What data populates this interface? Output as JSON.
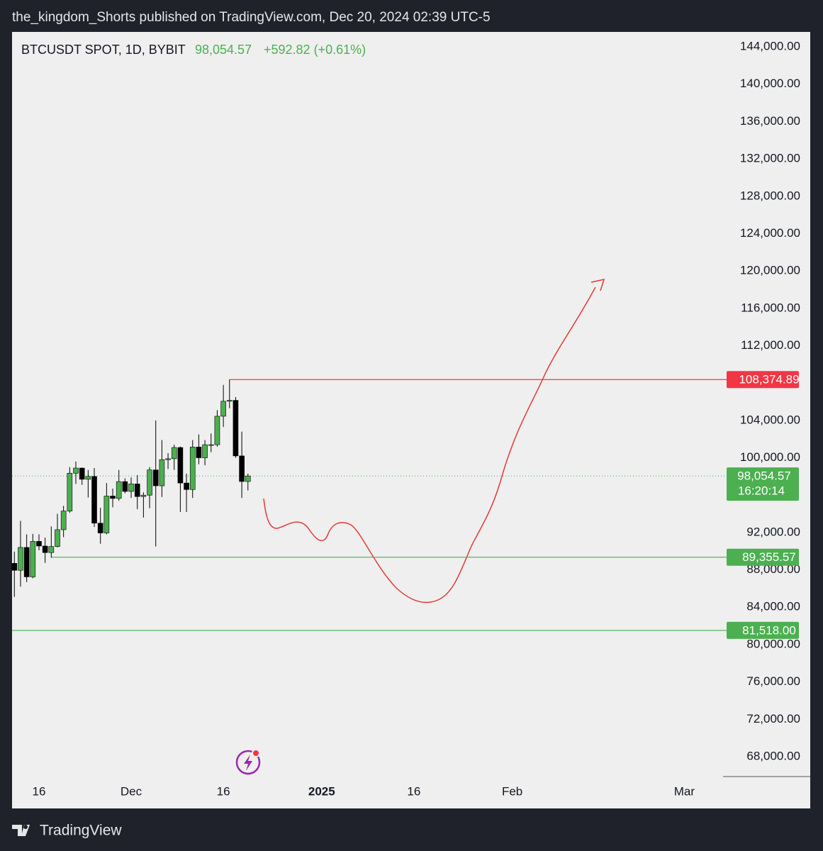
{
  "chart_data": {
    "type": "candlestick",
    "header": "the_kingdom_Shorts published on TradingView.com, Dec 20, 2024 02:39 UTC-5",
    "symbol": "BTCUSDT SPOT, 1D, BYBIT",
    "change": "+592.82 (+0.61%)",
    "brand": "TradingView",
    "x": [
      -4,
      -3,
      -2,
      -1,
      0,
      1,
      2,
      3,
      4,
      5,
      6,
      7,
      8,
      9,
      10,
      11,
      12,
      13,
      14,
      15,
      16,
      17,
      18,
      19,
      20,
      21,
      22,
      23,
      24,
      25,
      26,
      27,
      28,
      29,
      30,
      31,
      32,
      33,
      34
    ],
    "open": [
      88700,
      87950,
      90400,
      87250,
      91050,
      90550,
      89850,
      90500,
      92300,
      94300,
      98350,
      98900,
      97700,
      98000,
      93000,
      91950,
      95900,
      95650,
      97450,
      96400,
      97200,
      95850,
      96000,
      98700,
      97000,
      99800,
      99900,
      101100,
      97300,
      96600,
      101150,
      100000,
      101400,
      101400,
      104450,
      106050,
      106150,
      100200,
      97460
    ],
    "high": [
      89950,
      93250,
      91800,
      91850,
      91800,
      91450,
      92650,
      94000,
      94850,
      99000,
      99600,
      98950,
      98700,
      98900,
      94650,
      97300,
      96700,
      98700,
      97800,
      97900,
      98150,
      96300,
      99000,
      104000,
      101900,
      100500,
      101400,
      101200,
      98300,
      101900,
      102500,
      101900,
      102600,
      105100,
      107800,
      108374.89,
      106500,
      102800,
      98300
    ],
    "low": [
      85100,
      86200,
      86700,
      87100,
      90100,
      88750,
      89300,
      90400,
      91500,
      94100,
      97200,
      97100,
      95750,
      92600,
      90800,
      91800,
      94700,
      95400,
      96200,
      95700,
      94500,
      93600,
      94600,
      90500,
      95800,
      98800,
      98700,
      94200,
      94200,
      95700,
      99300,
      99200,
      100600,
      101200,
      103300,
      105300,
      100000,
      95700,
      96500
    ],
    "close": [
      87950,
      90400,
      87250,
      91050,
      90550,
      89850,
      90500,
      92300,
      94300,
      98350,
      98900,
      97700,
      98000,
      93000,
      91950,
      95900,
      95650,
      97450,
      96400,
      97200,
      95850,
      96000,
      98700,
      97000,
      99800,
      99900,
      101100,
      97300,
      96600,
      101150,
      100000,
      101400,
      101400,
      104450,
      106050,
      106150,
      100200,
      97460,
      98054.57
    ],
    "up_color": "#4caf50",
    "down_color": "#000000",
    "xlim": [
      -4.38,
      111.3
    ],
    "xticks": [
      {
        "value": 0,
        "label": "16"
      },
      {
        "value": 15,
        "label": "Dec"
      },
      {
        "value": 30,
        "label": "16"
      },
      {
        "value": 46,
        "label": "2025"
      },
      {
        "value": 61,
        "label": "16"
      },
      {
        "value": 77,
        "label": "Feb"
      },
      {
        "value": 105,
        "label": "Mar"
      }
    ],
    "ylim": [
      65870,
      145600
    ],
    "yticks": [
      {
        "value": 144000,
        "label": "144,000.00"
      },
      {
        "value": 140000,
        "label": "140,000.00"
      },
      {
        "value": 136000,
        "label": "136,000.00"
      },
      {
        "value": 132000,
        "label": "132,000.00"
      },
      {
        "value": 128000,
        "label": "128,000.00"
      },
      {
        "value": 124000,
        "label": "124,000.00"
      },
      {
        "value": 120000,
        "label": "120,000.00"
      },
      {
        "value": 116000,
        "label": "116,000.00"
      },
      {
        "value": 112000,
        "label": "112,000.00"
      },
      {
        "value": 104000,
        "label": "104,000.00"
      },
      {
        "value": 100000,
        "label": "100,000.00"
      },
      {
        "value": 92000,
        "label": "92,000.00"
      },
      {
        "value": 88000,
        "label": "88,000.00"
      },
      {
        "value": 84000,
        "label": "84,000.00"
      },
      {
        "value": 80000,
        "label": "80,000.00"
      },
      {
        "value": 76000,
        "label": "76,000.00"
      },
      {
        "value": 72000,
        "label": "72,000.00"
      },
      {
        "value": 68000,
        "label": "68,000.00"
      }
    ],
    "last_price": {
      "value": 98054.57,
      "label": "98,054.57",
      "countdown": "16:20:14",
      "color": "#4caf50"
    },
    "levels": [
      {
        "value": 108374.89,
        "label": "108,374.89",
        "color": "#f23645",
        "x_start": 31
      },
      {
        "value": 89355.57,
        "label": "89,355.57",
        "color": "#4caf50",
        "x_start": 2
      },
      {
        "value": 81518,
        "label": "81,518.00",
        "color": "#4caf50"
      }
    ]
  }
}
